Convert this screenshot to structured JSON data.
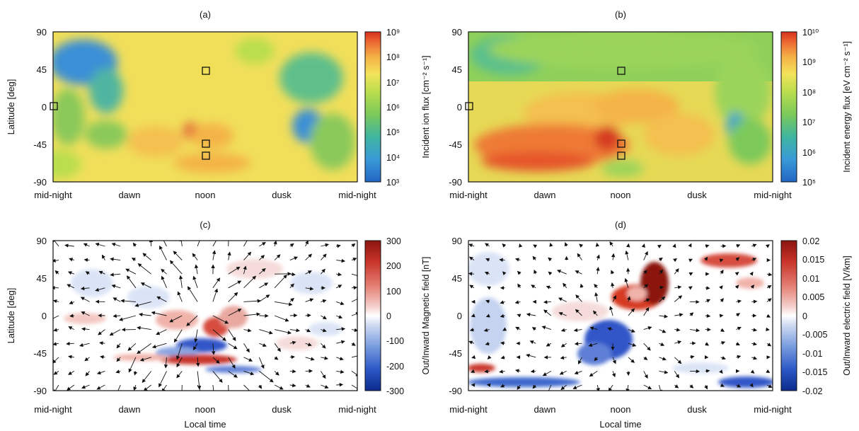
{
  "chart_data": [
    {
      "id": "a",
      "type": "heatmap",
      "panel_label": "(a)",
      "xlabel": "",
      "ylabel": "Latitude [deg]",
      "x_ticks": [
        "mid-night",
        "dawn",
        "noon",
        "dusk",
        "mid-night"
      ],
      "y_ticks": [
        90,
        45,
        0,
        -45,
        -90
      ],
      "ylim": [
        -90,
        90
      ],
      "colorbar": {
        "label": "Incident ion flux [cm⁻² s⁻¹]",
        "scale": "log",
        "range": [
          1000,
          1000000000
        ],
        "ticks": [
          "10³",
          "10⁴",
          "10⁵",
          "10⁶",
          "10⁷",
          "10⁸",
          "10⁹"
        ],
        "colormap": [
          "#2166c4",
          "#3a9ad8",
          "#3fb5a0",
          "#7cc95a",
          "#b9de4e",
          "#f3e35a",
          "#f4b347",
          "#ee7234",
          "#d7301f"
        ]
      },
      "markers": [
        {
          "local_time": "mid-night",
          "lat": 0
        },
        {
          "local_time": "noon",
          "lat": 40
        },
        {
          "local_time": "noon",
          "lat": -43
        },
        {
          "local_time": "noon",
          "lat": -60
        }
      ]
    },
    {
      "id": "b",
      "type": "heatmap",
      "panel_label": "(b)",
      "xlabel": "",
      "ylabel": "",
      "x_ticks": [
        "mid-night",
        "dawn",
        "noon",
        "dusk",
        "mid-night"
      ],
      "y_ticks": [
        90,
        45,
        0,
        -45,
        -90
      ],
      "ylim": [
        -90,
        90
      ],
      "colorbar": {
        "label": "Incident energy flux [eV cm⁻² s⁻¹]",
        "scale": "log",
        "range": [
          100000,
          10000000000
        ],
        "ticks": [
          "10⁵",
          "10⁶",
          "10⁷",
          "10⁸",
          "10⁹",
          "10¹⁰"
        ],
        "colormap": [
          "#2166c4",
          "#3a9ad8",
          "#3fb5a0",
          "#7cc95a",
          "#b9de4e",
          "#f3e35a",
          "#f4b347",
          "#ee7234",
          "#d7301f"
        ]
      },
      "markers": [
        {
          "local_time": "mid-night",
          "lat": 0
        },
        {
          "local_time": "noon",
          "lat": 40
        },
        {
          "local_time": "noon",
          "lat": -43
        },
        {
          "local_time": "noon",
          "lat": -60
        }
      ]
    },
    {
      "id": "c",
      "type": "heatmap",
      "panel_label": "(c)",
      "xlabel": "Local time",
      "ylabel": "Latitude [deg]",
      "x_ticks": [
        "mid-night",
        "dawn",
        "noon",
        "dusk",
        "mid-night"
      ],
      "y_ticks": [
        90,
        45,
        0,
        -45,
        -90
      ],
      "ylim": [
        -90,
        90
      ],
      "overlay": "vector arrows",
      "colorbar": {
        "label": "Out/Inward Magnetic field [nT]",
        "scale": "linear",
        "range": [
          -300,
          300
        ],
        "ticks": [
          "300",
          "200",
          "100",
          "0",
          "-100",
          "-200",
          "-300"
        ],
        "colormap": [
          "#0b2a8c",
          "#2b58c6",
          "#7c9ee0",
          "#d2dcf2",
          "#ffffff",
          "#f5d0cc",
          "#e47e72",
          "#c8342a",
          "#8c1410"
        ]
      }
    },
    {
      "id": "d",
      "type": "heatmap",
      "panel_label": "(d)",
      "xlabel": "Local time",
      "ylabel": "",
      "x_ticks": [
        "mid-night",
        "dawn",
        "noon",
        "dusk",
        "mid-night"
      ],
      "y_ticks": [
        90,
        45,
        0,
        -45,
        -90
      ],
      "ylim": [
        -90,
        90
      ],
      "overlay": "vector arrows",
      "colorbar": {
        "label": "Out/Inward electric field [V/km]",
        "scale": "linear",
        "range": [
          -0.02,
          0.02
        ],
        "ticks": [
          "0.02",
          "0.015",
          "0.01",
          "0.005",
          "0",
          "-0.005",
          "-0.01",
          "-0.015",
          "-0.02"
        ],
        "colormap": [
          "#0b2a8c",
          "#2b58c6",
          "#7c9ee0",
          "#d2dcf2",
          "#ffffff",
          "#f5d0cc",
          "#e47e72",
          "#c8342a",
          "#8c1410"
        ]
      }
    }
  ],
  "side_labels": {
    "a": "Incident ion flux [cm⁻² s⁻¹]",
    "b": "Incident energy flux [eV cm⁻² s⁻¹]",
    "c": "Out/Inward Magnetic field [nT]",
    "d_left": "Out/Inward Magnetic field [nT]",
    "d_right": "Out/Inward electric field [V/km]"
  }
}
